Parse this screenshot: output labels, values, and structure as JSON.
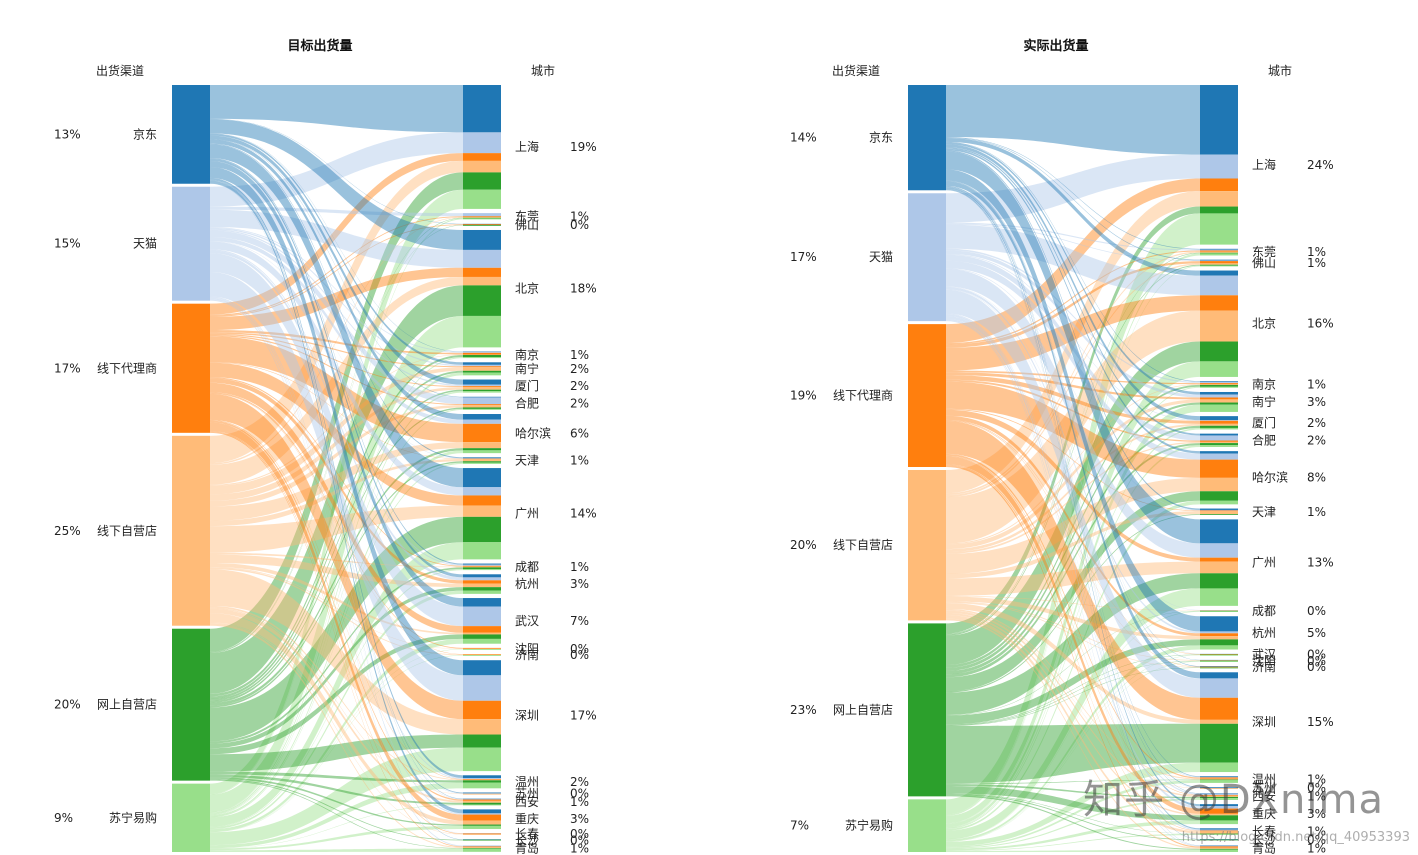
{
  "watermark": "知乎 @DXnima",
  "watermark_url": "https://blog.csdn.net/qq_40953393",
  "colors": {
    "jd": "#1f77b4",
    "tmall": "#aec7e8",
    "agent": "#ff7f0e",
    "offline": "#ffbb78",
    "online": "#2ca02c",
    "suning": "#98df8a"
  },
  "chart_data": [
    {
      "type": "sankey",
      "title": "目标出货量",
      "left_header": "出货渠道",
      "right_header": "城市",
      "sources": [
        {
          "name": "京东",
          "pct": "13%",
          "value": 13,
          "color": "#1f77b4"
        },
        {
          "name": "天猫",
          "pct": "15%",
          "value": 15,
          "color": "#aec7e8"
        },
        {
          "name": "线下代理商",
          "pct": "17%",
          "value": 17,
          "color": "#ff7f0e"
        },
        {
          "name": "线下自营店",
          "pct": "25%",
          "value": 25,
          "color": "#ffbb78"
        },
        {
          "name": "网上自营店",
          "pct": "20%",
          "value": 20,
          "color": "#2ca02c"
        },
        {
          "name": "苏宁易购",
          "pct": "9%",
          "value": 9,
          "color": "#98df8a"
        }
      ],
      "targets": [
        {
          "name": "上海",
          "pct": "19%",
          "value": 19
        },
        {
          "name": "东莞",
          "pct": "1%",
          "value": 1
        },
        {
          "name": "佛山",
          "pct": "0%",
          "value": 0.3
        },
        {
          "name": "北京",
          "pct": "18%",
          "value": 18
        },
        {
          "name": "南京",
          "pct": "1%",
          "value": 1
        },
        {
          "name": "南宁",
          "pct": "2%",
          "value": 2
        },
        {
          "name": "厦门",
          "pct": "2%",
          "value": 2
        },
        {
          "name": "合肥",
          "pct": "2%",
          "value": 2
        },
        {
          "name": "哈尔滨",
          "pct": "6%",
          "value": 6
        },
        {
          "name": "天津",
          "pct": "1%",
          "value": 1
        },
        {
          "name": "广州",
          "pct": "14%",
          "value": 14
        },
        {
          "name": "成都",
          "pct": "1%",
          "value": 1
        },
        {
          "name": "杭州",
          "pct": "3%",
          "value": 3
        },
        {
          "name": "武汉",
          "pct": "7%",
          "value": 7
        },
        {
          "name": "沈阳",
          "pct": "0%",
          "value": 0.3
        },
        {
          "name": "济南",
          "pct": "0%",
          "value": 0.3
        },
        {
          "name": "深圳",
          "pct": "17%",
          "value": 17
        },
        {
          "name": "温州",
          "pct": "2%",
          "value": 2
        },
        {
          "name": "苏州",
          "pct": "0%",
          "value": 0.3
        },
        {
          "name": "西安",
          "pct": "1%",
          "value": 1
        },
        {
          "name": "重庆",
          "pct": "3%",
          "value": 3
        },
        {
          "name": "长春",
          "pct": "0%",
          "value": 0.3
        },
        {
          "name": "长沙",
          "pct": "0%",
          "value": 0.3
        },
        {
          "name": "青岛",
          "pct": "1%",
          "value": 1
        }
      ]
    },
    {
      "type": "sankey",
      "title": "实际出货量",
      "left_header": "出货渠道",
      "right_header": "城市",
      "sources": [
        {
          "name": "京东",
          "pct": "14%",
          "value": 14,
          "color": "#1f77b4"
        },
        {
          "name": "天猫",
          "pct": "17%",
          "value": 17,
          "color": "#aec7e8"
        },
        {
          "name": "线下代理商",
          "pct": "19%",
          "value": 19,
          "color": "#ff7f0e"
        },
        {
          "name": "线下自营店",
          "pct": "20%",
          "value": 20,
          "color": "#ffbb78"
        },
        {
          "name": "网上自营店",
          "pct": "23%",
          "value": 23,
          "color": "#2ca02c"
        },
        {
          "name": "苏宁易购",
          "pct": "7%",
          "value": 7,
          "color": "#98df8a"
        }
      ],
      "targets": [
        {
          "name": "上海",
          "pct": "24%",
          "value": 24
        },
        {
          "name": "东莞",
          "pct": "1%",
          "value": 1
        },
        {
          "name": "佛山",
          "pct": "1%",
          "value": 1
        },
        {
          "name": "北京",
          "pct": "16%",
          "value": 16
        },
        {
          "name": "南京",
          "pct": "1%",
          "value": 1
        },
        {
          "name": "南宁",
          "pct": "3%",
          "value": 3
        },
        {
          "name": "厦门",
          "pct": "2%",
          "value": 2
        },
        {
          "name": "合肥",
          "pct": "2%",
          "value": 2
        },
        {
          "name": "哈尔滨",
          "pct": "8%",
          "value": 8
        },
        {
          "name": "天津",
          "pct": "1%",
          "value": 1
        },
        {
          "name": "广州",
          "pct": "13%",
          "value": 13
        },
        {
          "name": "成都",
          "pct": "0%",
          "value": 0.3
        },
        {
          "name": "杭州",
          "pct": "5%",
          "value": 5
        },
        {
          "name": "武汉",
          "pct": "0%",
          "value": 0.3
        },
        {
          "name": "沈阳",
          "pct": "0%",
          "value": 0.3
        },
        {
          "name": "济南",
          "pct": "0%",
          "value": 0.3
        },
        {
          "name": "深圳",
          "pct": "15%",
          "value": 15
        },
        {
          "name": "温州",
          "pct": "1%",
          "value": 1
        },
        {
          "name": "苏州",
          "pct": "0%",
          "value": 0.3
        },
        {
          "name": "西安",
          "pct": "1%",
          "value": 1
        },
        {
          "name": "重庆",
          "pct": "3%",
          "value": 3
        },
        {
          "name": "长春",
          "pct": "1%",
          "value": 1
        },
        {
          "name": "长沙",
          "pct": "0%",
          "value": 0.3
        },
        {
          "name": "青岛",
          "pct": "1%",
          "value": 1
        }
      ]
    }
  ]
}
